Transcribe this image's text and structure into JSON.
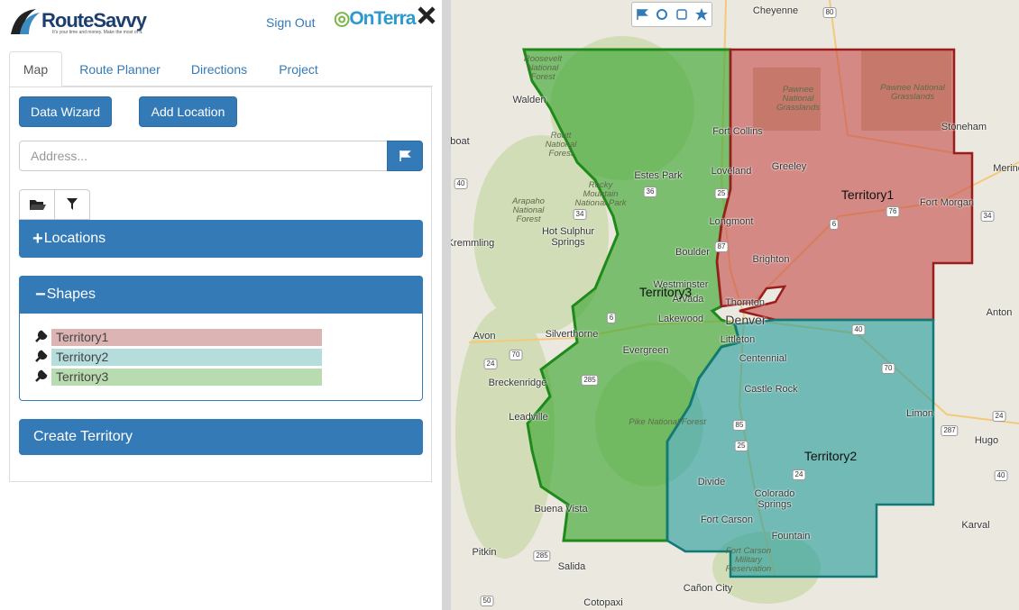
{
  "header": {
    "logo": "RouteSavvy",
    "tagline": "It's your time and money. Make the most of it.",
    "sign_out": "Sign Out",
    "brand": "OnTerra"
  },
  "tabs": [
    "Map",
    "Route Planner",
    "Directions",
    "Project"
  ],
  "buttons": {
    "data_wizard": "Data Wizard",
    "add_location": "Add Location"
  },
  "address_placeholder": "Address...",
  "panels": {
    "locations": "Locations",
    "shapes": "Shapes"
  },
  "territories": [
    {
      "name": "Territory1",
      "color": "#dcb4b3"
    },
    {
      "name": "Territory2",
      "color": "#b4dddc"
    },
    {
      "name": "Territory3",
      "color": "#b8dcb0"
    }
  ],
  "create_territory": "Create Territory",
  "map": {
    "territory_labels": [
      "Territory1",
      "Territory2",
      "Territory3"
    ],
    "places": [
      "Cheyenne",
      "Walden",
      "Fort Collins",
      "Loveland",
      "Greeley",
      "Estes Park",
      "Longmont",
      "Boulder",
      "Brighton",
      "Westminster",
      "Arvada",
      "Thornton",
      "Lakewood",
      "Denver",
      "Littleton",
      "Centennial",
      "Evergreen",
      "Castle Rock",
      "Silverthorne",
      "Avon",
      "Breckenridge",
      "Leadville",
      "Hot Sulphur Springs",
      "Kremmling",
      "Buena Vista",
      "Divide",
      "Colorado Springs",
      "Fort Carson",
      "Fountain",
      "Pitkin",
      "Salida",
      "Cañon City",
      "Cotopaxi",
      "Stoneham",
      "Fort Morgan",
      "Merino",
      "Anton",
      "Limon",
      "Hugo",
      "Karval",
      "boat"
    ],
    "parks": [
      "Roosevelt National Forest",
      "Pawnee National Grasslands",
      "Pawnee National Grasslands",
      "Routt National Forest",
      "Rocky Mountain National Park",
      "Arapaho National Forest",
      "Pike National Forest",
      "Fort Carson Military Reservation"
    ],
    "highways": [
      "80",
      "25",
      "76",
      "6",
      "34",
      "40",
      "36",
      "34",
      "87",
      "70",
      "24",
      "285",
      "85",
      "25",
      "24",
      "40",
      "70",
      "287",
      "24",
      "40",
      "285",
      "50",
      "6"
    ]
  }
}
